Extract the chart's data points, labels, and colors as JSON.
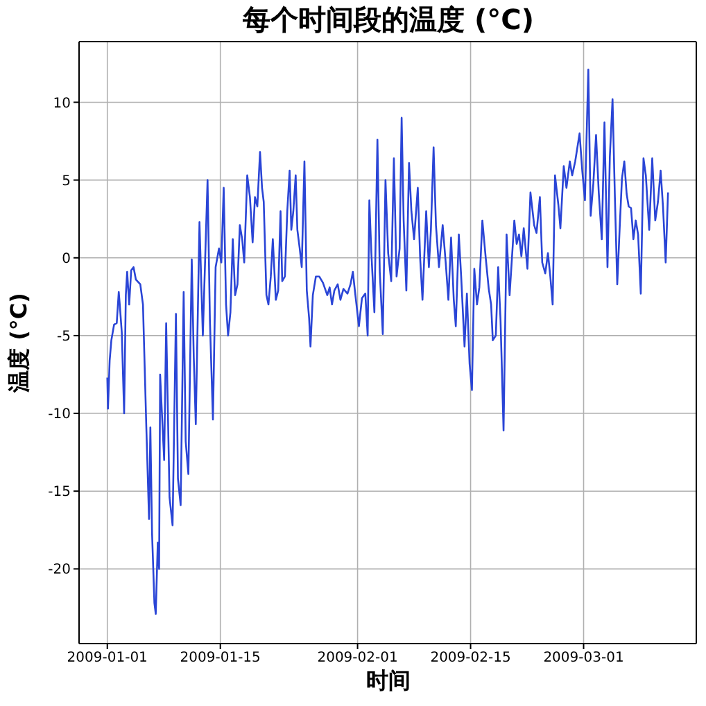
{
  "chart_data": {
    "type": "line",
    "title": "每个时间段的温度 (°C)",
    "xlabel": "时间",
    "ylabel": "温度 (°C)",
    "color": "#2a45d6",
    "grid": true,
    "xlim": [
      "2008-12-28T12:00",
      "2009-03-14T23:00"
    ],
    "xticks": [
      "2009-01-01",
      "2009-01-15",
      "2009-02-01",
      "2009-02-15",
      "2009-03-01"
    ],
    "ylim": [
      -24.8,
      13.9
    ],
    "yticks": [
      -20,
      -15,
      -10,
      -5,
      0,
      5,
      10
    ],
    "x": [
      "2009-01-01T00:00",
      "2009-01-01T02:00",
      "2009-01-01T07:00",
      "2009-01-01T12:00",
      "2009-01-01T20:00",
      "2009-01-02T04:00",
      "2009-01-02T10:00",
      "2009-01-02T13:00",
      "2009-01-02T19:00",
      "2009-01-03T02:00",
      "2009-01-03T07:00",
      "2009-01-03T11:00",
      "2009-01-03T17:00",
      "2009-01-03T23:00",
      "2009-01-04T06:00",
      "2009-01-04T13:00",
      "2009-01-05T02:00",
      "2009-01-05T10:00",
      "2009-01-05T20:00",
      "2009-01-06T04:00",
      "2009-01-06T08:00",
      "2009-01-06T13:00",
      "2009-01-06T20:00",
      "2009-01-07T00:00",
      "2009-01-07T06:00",
      "2009-01-07T10:00",
      "2009-01-07T13:00",
      "2009-01-07T19:00",
      "2009-01-08T01:00",
      "2009-01-08T07:00",
      "2009-01-08T17:00",
      "2009-01-09T02:00",
      "2009-01-09T12:00",
      "2009-01-09T18:00",
      "2009-01-10T02:00",
      "2009-01-10T11:00",
      "2009-01-10T17:00",
      "2009-01-11T01:00",
      "2009-01-11T11:00",
      "2009-01-11T17:00",
      "2009-01-11T23:00",
      "2009-01-12T10:00",
      "2009-01-12T20:00",
      "2009-01-13T10:00",
      "2009-01-13T17:00",
      "2009-01-14T02:00",
      "2009-01-14T10:00",
      "2009-01-14T20:00",
      "2009-01-15T03:00",
      "2009-01-15T10:00",
      "2009-01-15T17:00",
      "2009-01-15T23:00",
      "2009-01-16T06:00",
      "2009-01-16T13:00",
      "2009-01-16T20:00",
      "2009-01-17T03:00",
      "2009-01-17T10:00",
      "2009-01-17T17:00",
      "2009-01-17T23:00",
      "2009-01-18T08:00",
      "2009-01-18T16:00",
      "2009-01-19T00:00",
      "2009-01-19T07:00",
      "2009-01-19T14:00",
      "2009-01-19T22:00",
      "2009-01-20T04:00",
      "2009-01-20T09:00",
      "2009-01-20T17:00",
      "2009-01-20T23:00",
      "2009-01-21T06:00",
      "2009-01-21T12:00",
      "2009-01-21T21:00",
      "2009-01-22T04:00",
      "2009-01-22T11:00",
      "2009-01-22T16:00",
      "2009-01-23T00:00",
      "2009-01-23T07:00",
      "2009-01-23T14:00",
      "2009-01-23T19:00",
      "2009-01-24T01:00",
      "2009-01-24T08:00",
      "2009-01-24T13:00",
      "2009-01-24T20:00",
      "2009-01-25T02:00",
      "2009-01-25T10:00",
      "2009-01-25T17:00",
      "2009-01-26T00:00",
      "2009-01-26T04:00",
      "2009-01-26T11:00",
      "2009-01-26T20:00",
      "2009-01-27T06:00",
      "2009-01-27T17:00",
      "2009-01-28T06:00",
      "2009-01-28T13:00",
      "2009-01-28T20:00",
      "2009-01-29T03:00",
      "2009-01-29T13:00",
      "2009-01-29T21:00",
      "2009-01-30T06:00",
      "2009-01-30T18:00",
      "2009-01-31T03:00",
      "2009-01-31T10:00",
      "2009-01-31T17:00",
      "2009-02-01T04:00",
      "2009-02-01T13:00",
      "2009-02-01T23:00",
      "2009-02-02T06:00",
      "2009-02-02T11:00",
      "2009-02-02T17:00",
      "2009-02-03T02:00",
      "2009-02-03T11:00",
      "2009-02-03T18:00",
      "2009-02-04T03:00",
      "2009-02-04T11:00",
      "2009-02-04T19:00",
      "2009-02-05T04:00",
      "2009-02-05T12:00",
      "2009-02-05T20:00",
      "2009-02-06T05:00",
      "2009-02-06T11:00",
      "2009-02-06T17:00",
      "2009-02-07T01:00",
      "2009-02-07T09:00",
      "2009-02-07T16:00",
      "2009-02-08T00:00",
      "2009-02-08T11:00",
      "2009-02-08T18:00",
      "2009-02-09T01:00",
      "2009-02-09T12:00",
      "2009-02-09T20:00",
      "2009-02-10T02:00",
      "2009-02-10T10:00",
      "2009-02-10T17:00",
      "2009-02-11T02:00",
      "2009-02-11T13:00",
      "2009-02-11T22:00",
      "2009-02-12T06:00",
      "2009-02-12T14:00",
      "2009-02-12T22:00",
      "2009-02-13T04:00",
      "2009-02-13T13:00",
      "2009-02-13T20:00",
      "2009-02-14T06:00",
      "2009-02-14T13:00",
      "2009-02-14T21:00",
      "2009-02-15T04:00",
      "2009-02-15T11:00",
      "2009-02-15T19:00",
      "2009-02-16T02:00",
      "2009-02-16T11:00",
      "2009-02-16T21:00",
      "2009-02-17T06:00",
      "2009-02-17T13:00",
      "2009-02-17T18:00",
      "2009-02-18T03:00",
      "2009-02-18T10:00",
      "2009-02-18T17:00",
      "2009-02-19T02:00",
      "2009-02-19T11:00",
      "2009-02-19T20:00",
      "2009-02-20T03:00",
      "2009-02-20T10:00",
      "2009-02-20T17:00",
      "2009-02-21T00:00",
      "2009-02-21T07:00",
      "2009-02-21T14:00",
      "2009-02-22T01:00",
      "2009-02-22T10:00",
      "2009-02-22T21:00",
      "2009-02-23T04:00",
      "2009-02-23T14:00",
      "2009-02-23T21:00",
      "2009-02-24T06:00",
      "2009-02-24T14:00",
      "2009-02-24T21:00",
      "2009-02-25T04:00",
      "2009-02-25T11:00",
      "2009-02-25T21:00",
      "2009-02-26T03:00",
      "2009-02-26T13:00",
      "2009-02-26T21:00",
      "2009-02-27T07:00",
      "2009-02-27T14:00",
      "2009-02-27T23:00",
      "2009-02-28T12:00",
      "2009-02-28T20:00",
      "2009-03-01T04:00",
      "2009-03-01T14:00",
      "2009-03-01T21:00",
      "2009-03-02T05:00",
      "2009-03-02T13:00",
      "2009-03-02T21:00",
      "2009-03-03T06:00",
      "2009-03-03T14:00",
      "2009-03-03T23:00",
      "2009-03-04T06:00",
      "2009-03-04T14:00",
      "2009-03-04T21:00",
      "2009-03-05T04:00",
      "2009-03-05T11:00",
      "2009-03-05T18:00",
      "2009-03-06T01:00",
      "2009-03-06T08:00",
      "2009-03-06T14:00",
      "2009-03-06T21:00",
      "2009-03-07T04:00",
      "2009-03-07T11:00",
      "2009-03-07T18:00",
      "2009-03-08T02:00",
      "2009-03-08T10:00",
      "2009-03-08T17:00",
      "2009-03-09T03:00",
      "2009-03-09T12:00",
      "2009-03-09T21:00",
      "2009-03-10T05:00",
      "2009-03-10T13:00",
      "2009-03-10T20:00",
      "2009-03-11T04:00",
      "2009-03-11T11:00"
    ],
    "values": [
      -7.7,
      -9.7,
      -6.6,
      -5.3,
      -4.3,
      -4.2,
      -2.2,
      -3.0,
      -4.8,
      -10.0,
      -2.4,
      -0.9,
      -3.0,
      -0.8,
      -0.6,
      -1.4,
      -1.7,
      -3.0,
      -10.9,
      -16.8,
      -10.9,
      -17.7,
      -22.2,
      -22.9,
      -18.3,
      -20.0,
      -7.5,
      -10.3,
      -13.0,
      -4.2,
      -15.4,
      -17.2,
      -3.6,
      -14.2,
      -15.9,
      -2.2,
      -11.8,
      -13.9,
      -0.1,
      -6.4,
      -10.7,
      2.3,
      -5.0,
      5.0,
      -4.0,
      -10.4,
      -0.6,
      0.6,
      -0.3,
      4.5,
      -3.0,
      -5.0,
      -3.5,
      1.2,
      -2.4,
      -1.7,
      2.1,
      1.2,
      -0.3,
      5.3,
      3.9,
      1.0,
      3.9,
      3.3,
      6.8,
      4.5,
      3.6,
      -2.4,
      -3.0,
      -1.2,
      1.2,
      -2.7,
      -2.1,
      3.0,
      -1.5,
      -1.2,
      3.0,
      5.6,
      1.8,
      3.0,
      5.3,
      1.8,
      0.6,
      -0.6,
      6.2,
      -2.1,
      -3.9,
      -5.7,
      -2.4,
      -1.2,
      -1.2,
      -1.6,
      -2.4,
      -1.9,
      -3.0,
      -2.1,
      -1.7,
      -2.7,
      -2.0,
      -2.3,
      -1.7,
      -0.9,
      -2.3,
      -4.4,
      -2.6,
      -2.3,
      -5.0,
      3.7,
      0.3,
      -3.5,
      7.6,
      -0.9,
      -4.9,
      5.0,
      0.3,
      -1.5,
      6.4,
      -1.2,
      0.6,
      9.0,
      2.4,
      -2.1,
      6.1,
      3.0,
      1.2,
      4.5,
      0.0,
      -2.7,
      3.0,
      -0.6,
      1.8,
      7.1,
      2.1,
      -0.6,
      2.1,
      -0.3,
      -2.7,
      1.3,
      -2.7,
      -4.4,
      1.5,
      -1.2,
      -5.7,
      -2.3,
      -6.8,
      -8.5,
      -0.7,
      -3.0,
      -1.9,
      2.4,
      0.0,
      -2.0,
      -3.0,
      -5.3,
      -5.0,
      -0.6,
      -4.0,
      -11.1,
      1.5,
      -2.4,
      0.0,
      2.4,
      0.9,
      1.5,
      0.1,
      1.9,
      -0.7,
      4.2,
      2.1,
      1.6,
      3.9,
      -0.3,
      -1.0,
      0.3,
      -1.2,
      -3.0,
      5.3,
      3.4,
      1.9,
      5.9,
      4.5,
      6.2,
      5.3,
      6.2,
      8.0,
      5.6,
      3.7,
      12.1,
      2.7,
      4.8,
      7.9,
      4.2,
      1.2,
      8.7,
      -0.6,
      6.5,
      10.2,
      3.9,
      -1.7,
      1.8,
      5.1,
      6.2,
      4.1,
      3.3,
      3.2,
      1.2,
      2.4,
      1.5,
      -2.3,
      6.4,
      5.3,
      1.8,
      6.4,
      2.4,
      3.6,
      5.6,
      3.3,
      -0.3,
      4.2
    ]
  }
}
